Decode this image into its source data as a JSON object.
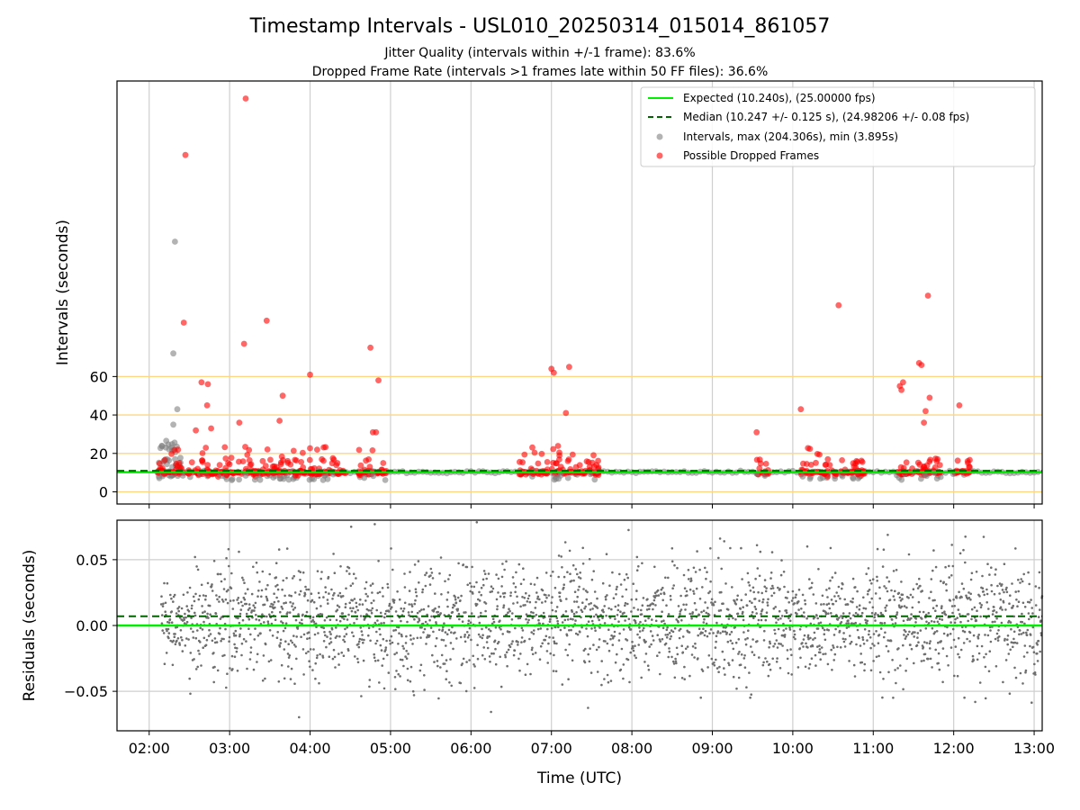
{
  "chart_data": [
    {
      "type": "scatter",
      "title": "Timestamp Intervals - USL010_20250314_015014_861057",
      "subtitle_lines": [
        "Jitter Quality (intervals within +/-1 frame): 83.6%",
        "Dropped Frame Rate (intervals >1 frames late within 50 FF files): 36.6%"
      ],
      "ylabel": "Intervals (seconds)",
      "xlim_hours": [
        1.6,
        13.1
      ],
      "ylim_display": [
        -7,
        215
      ],
      "ylim_note": "upper region of axis compressed above 60 s",
      "yticks": [
        0,
        20,
        40,
        60
      ],
      "ytick_labels": [
        "0",
        "20",
        "40",
        "60"
      ],
      "hlines_orange": [
        0,
        20,
        40,
        60
      ],
      "expected_interval": 10.24,
      "median_interval": 10.247,
      "legend": {
        "placement": "upper right",
        "entries": [
          "Expected (10.240s), (25.00000 fps)",
          "Median (10.247 +/- 0.125 s), (24.98206 +/- 0.08 fps)",
          "Intervals, max (204.306s), min (3.895s)",
          "Possible Dropped Frames"
        ]
      },
      "colors": {
        "expected": "#00ee00",
        "median": "#006400",
        "intervals": "#808080",
        "dropped": "#ff0000",
        "hlines": "#ffd580"
      },
      "outliers": [
        {
          "x": 3.2,
          "y": 204.3,
          "dropped": true
        },
        {
          "x": 2.45,
          "y": 175,
          "dropped": true
        },
        {
          "x": 2.32,
          "y": 130,
          "dropped": false
        },
        {
          "x": 10.57,
          "y": 97,
          "dropped": true
        },
        {
          "x": 11.68,
          "y": 102,
          "dropped": true
        },
        {
          "x": 2.43,
          "y": 88,
          "dropped": true
        },
        {
          "x": 3.46,
          "y": 89,
          "dropped": true
        },
        {
          "x": 3.18,
          "y": 77,
          "dropped": true
        },
        {
          "x": 4.75,
          "y": 75,
          "dropped": true
        },
        {
          "x": 2.3,
          "y": 72,
          "dropped": false
        },
        {
          "x": 7.0,
          "y": 64,
          "dropped": true
        },
        {
          "x": 7.03,
          "y": 62,
          "dropped": true
        },
        {
          "x": 7.22,
          "y": 65,
          "dropped": true
        },
        {
          "x": 4.0,
          "y": 61,
          "dropped": true
        },
        {
          "x": 4.85,
          "y": 58,
          "dropped": true
        },
        {
          "x": 11.57,
          "y": 67,
          "dropped": true
        },
        {
          "x": 11.6,
          "y": 66,
          "dropped": true
        },
        {
          "x": 11.37,
          "y": 57,
          "dropped": true
        },
        {
          "x": 11.33,
          "y": 55,
          "dropped": true
        },
        {
          "x": 11.35,
          "y": 53,
          "dropped": true
        },
        {
          "x": 11.7,
          "y": 49,
          "dropped": true
        },
        {
          "x": 2.65,
          "y": 57,
          "dropped": true
        },
        {
          "x": 2.73,
          "y": 56,
          "dropped": true
        },
        {
          "x": 3.66,
          "y": 50,
          "dropped": true
        },
        {
          "x": 2.72,
          "y": 45,
          "dropped": true
        },
        {
          "x": 10.1,
          "y": 43,
          "dropped": true
        },
        {
          "x": 12.07,
          "y": 45,
          "dropped": true
        },
        {
          "x": 7.18,
          "y": 41,
          "dropped": true
        },
        {
          "x": 11.65,
          "y": 42,
          "dropped": true
        },
        {
          "x": 2.35,
          "y": 43,
          "dropped": false
        },
        {
          "x": 3.12,
          "y": 36,
          "dropped": true
        },
        {
          "x": 3.62,
          "y": 37,
          "dropped": true
        },
        {
          "x": 11.63,
          "y": 36,
          "dropped": true
        },
        {
          "x": 2.3,
          "y": 35,
          "dropped": false
        },
        {
          "x": 2.58,
          "y": 32,
          "dropped": true
        },
        {
          "x": 2.77,
          "y": 33,
          "dropped": true
        },
        {
          "x": 4.78,
          "y": 31,
          "dropped": true
        },
        {
          "x": 4.82,
          "y": 31,
          "dropped": true
        },
        {
          "x": 9.55,
          "y": 31,
          "dropped": true
        }
      ],
      "cluster_ranges_hours": [
        [
          2.1,
          2.95
        ],
        [
          2.95,
          3.8
        ],
        [
          3.8,
          4.45
        ],
        [
          4.6,
          4.95
        ],
        [
          6.6,
          6.95
        ],
        [
          7.0,
          7.6
        ],
        [
          9.55,
          9.7
        ],
        [
          10.1,
          10.9
        ],
        [
          11.3,
          11.85
        ],
        [
          12.0,
          12.2
        ]
      ]
    },
    {
      "type": "scatter",
      "ylabel": "Residuals (seconds)",
      "xlabel": "Time (UTC)",
      "xlim_hours": [
        1.6,
        13.1
      ],
      "ylim": [
        -0.08,
        0.08
      ],
      "yticks": [
        0.05,
        0.0,
        -0.05
      ],
      "ytick_labels": [
        "0.05",
        "0.00",
        "−0.05"
      ],
      "xticks_hours": [
        2,
        3,
        4,
        5,
        6,
        7,
        8,
        9,
        10,
        11,
        12,
        13
      ],
      "xtick_labels": [
        "02:00",
        "03:00",
        "04:00",
        "05:00",
        "06:00",
        "07:00",
        "08:00",
        "09:00",
        "10:00",
        "11:00",
        "12:00",
        "13:00"
      ],
      "expected_residual": 0.0,
      "median_residual": 0.007,
      "residual_spread_sd": 0.022,
      "residual_data_start_hours": 2.15,
      "point_color": "#6e6e6e"
    }
  ]
}
